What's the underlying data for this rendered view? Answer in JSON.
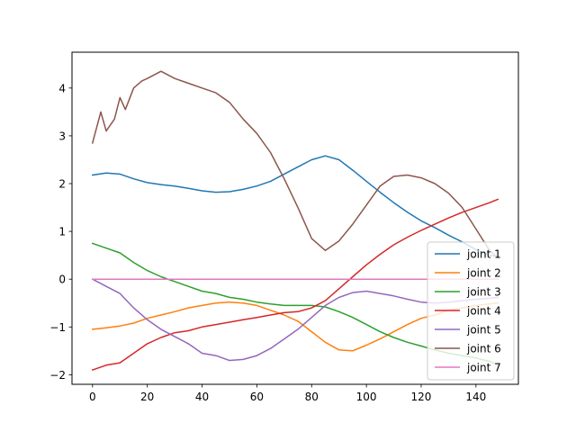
{
  "chart_data": {
    "type": "line",
    "title": "",
    "xlabel": "",
    "ylabel": "",
    "xlim": [
      -7.5,
      155.5
    ],
    "ylim": [
      -2.2,
      4.75
    ],
    "xticks": [
      0,
      20,
      40,
      60,
      80,
      100,
      120,
      140
    ],
    "yticks": [
      -2,
      -1,
      0,
      1,
      2,
      3,
      4
    ],
    "grid": false,
    "legend_position": "lower right",
    "series": [
      {
        "name": "joint 1",
        "color": "#1f77b4",
        "x": [
          0,
          5,
          10,
          15,
          20,
          25,
          30,
          35,
          40,
          45,
          50,
          55,
          60,
          65,
          70,
          75,
          80,
          85,
          90,
          95,
          100,
          105,
          110,
          115,
          120,
          125,
          130,
          135,
          140,
          145,
          148
        ],
        "y": [
          2.18,
          2.22,
          2.2,
          2.1,
          2.02,
          1.98,
          1.95,
          1.9,
          1.85,
          1.82,
          1.83,
          1.88,
          1.95,
          2.05,
          2.2,
          2.35,
          2.5,
          2.58,
          2.5,
          2.28,
          2.05,
          1.82,
          1.6,
          1.4,
          1.22,
          1.08,
          0.92,
          0.78,
          0.62,
          0.5,
          0.48
        ]
      },
      {
        "name": "joint 2",
        "color": "#ff7f0e",
        "x": [
          0,
          5,
          10,
          15,
          20,
          25,
          30,
          35,
          40,
          45,
          50,
          55,
          60,
          65,
          70,
          75,
          80,
          85,
          90,
          95,
          100,
          105,
          110,
          115,
          120,
          125,
          130,
          135,
          140,
          145,
          148
        ],
        "y": [
          -1.05,
          -1.02,
          -0.98,
          -0.92,
          -0.82,
          -0.75,
          -0.68,
          -0.6,
          -0.55,
          -0.5,
          -0.48,
          -0.5,
          -0.55,
          -0.65,
          -0.75,
          -0.88,
          -1.1,
          -1.32,
          -1.48,
          -1.5,
          -1.38,
          -1.25,
          -1.1,
          -0.95,
          -0.82,
          -0.75,
          -0.65,
          -0.6,
          -0.55,
          -0.52,
          -0.5
        ]
      },
      {
        "name": "joint 3",
        "color": "#2ca02c",
        "x": [
          0,
          5,
          10,
          15,
          20,
          25,
          30,
          35,
          40,
          45,
          50,
          55,
          60,
          65,
          70,
          75,
          80,
          85,
          90,
          95,
          100,
          105,
          110,
          115,
          120,
          125,
          130,
          135,
          140,
          145,
          148
        ],
        "y": [
          0.75,
          0.65,
          0.55,
          0.35,
          0.18,
          0.05,
          -0.05,
          -0.15,
          -0.25,
          -0.3,
          -0.38,
          -0.42,
          -0.48,
          -0.52,
          -0.55,
          -0.55,
          -0.55,
          -0.58,
          -0.68,
          -0.8,
          -0.95,
          -1.1,
          -1.22,
          -1.32,
          -1.4,
          -1.48,
          -1.55,
          -1.6,
          -1.65,
          -1.72,
          -1.8
        ]
      },
      {
        "name": "joint 4",
        "color": "#d62728",
        "x": [
          0,
          5,
          10,
          15,
          20,
          25,
          30,
          35,
          40,
          45,
          50,
          55,
          60,
          65,
          70,
          75,
          80,
          85,
          90,
          95,
          100,
          105,
          110,
          115,
          120,
          125,
          130,
          135,
          140,
          145,
          148
        ],
        "y": [
          -1.9,
          -1.8,
          -1.75,
          -1.55,
          -1.35,
          -1.22,
          -1.12,
          -1.08,
          -1.0,
          -0.95,
          -0.9,
          -0.85,
          -0.8,
          -0.75,
          -0.7,
          -0.68,
          -0.6,
          -0.45,
          -0.2,
          0.05,
          0.3,
          0.52,
          0.72,
          0.88,
          1.02,
          1.15,
          1.28,
          1.4,
          1.5,
          1.6,
          1.67
        ]
      },
      {
        "name": "joint 5",
        "color": "#9467bd",
        "x": [
          0,
          5,
          10,
          15,
          20,
          25,
          30,
          35,
          40,
          45,
          50,
          55,
          60,
          65,
          70,
          75,
          80,
          85,
          90,
          95,
          100,
          105,
          110,
          115,
          120,
          125,
          130,
          135,
          140,
          145,
          148
        ],
        "y": [
          0.0,
          -0.15,
          -0.3,
          -0.6,
          -0.85,
          -1.05,
          -1.2,
          -1.35,
          -1.55,
          -1.6,
          -1.7,
          -1.68,
          -1.6,
          -1.45,
          -1.25,
          -1.05,
          -0.8,
          -0.55,
          -0.38,
          -0.28,
          -0.25,
          -0.3,
          -0.35,
          -0.42,
          -0.48,
          -0.5,
          -0.48,
          -0.45,
          -0.42,
          -0.4,
          -0.38
        ]
      },
      {
        "name": "joint 6",
        "color": "#8c564b",
        "x": [
          0,
          3,
          5,
          8,
          10,
          12,
          15,
          18,
          20,
          25,
          30,
          35,
          40,
          45,
          50,
          55,
          60,
          65,
          70,
          75,
          80,
          85,
          90,
          95,
          100,
          105,
          110,
          115,
          120,
          125,
          130,
          135,
          140,
          145,
          148
        ],
        "y": [
          2.85,
          3.5,
          3.1,
          3.35,
          3.8,
          3.55,
          4.0,
          4.15,
          4.2,
          4.35,
          4.2,
          4.1,
          4.0,
          3.9,
          3.7,
          3.35,
          3.05,
          2.65,
          2.1,
          1.5,
          0.85,
          0.6,
          0.8,
          1.15,
          1.55,
          1.95,
          2.15,
          2.18,
          2.12,
          2.0,
          1.8,
          1.5,
          1.05,
          0.6,
          0.45
        ]
      },
      {
        "name": "joint 7",
        "color": "#e377c2",
        "x": [
          0,
          148
        ],
        "y": [
          0.0,
          0.0
        ]
      }
    ]
  }
}
